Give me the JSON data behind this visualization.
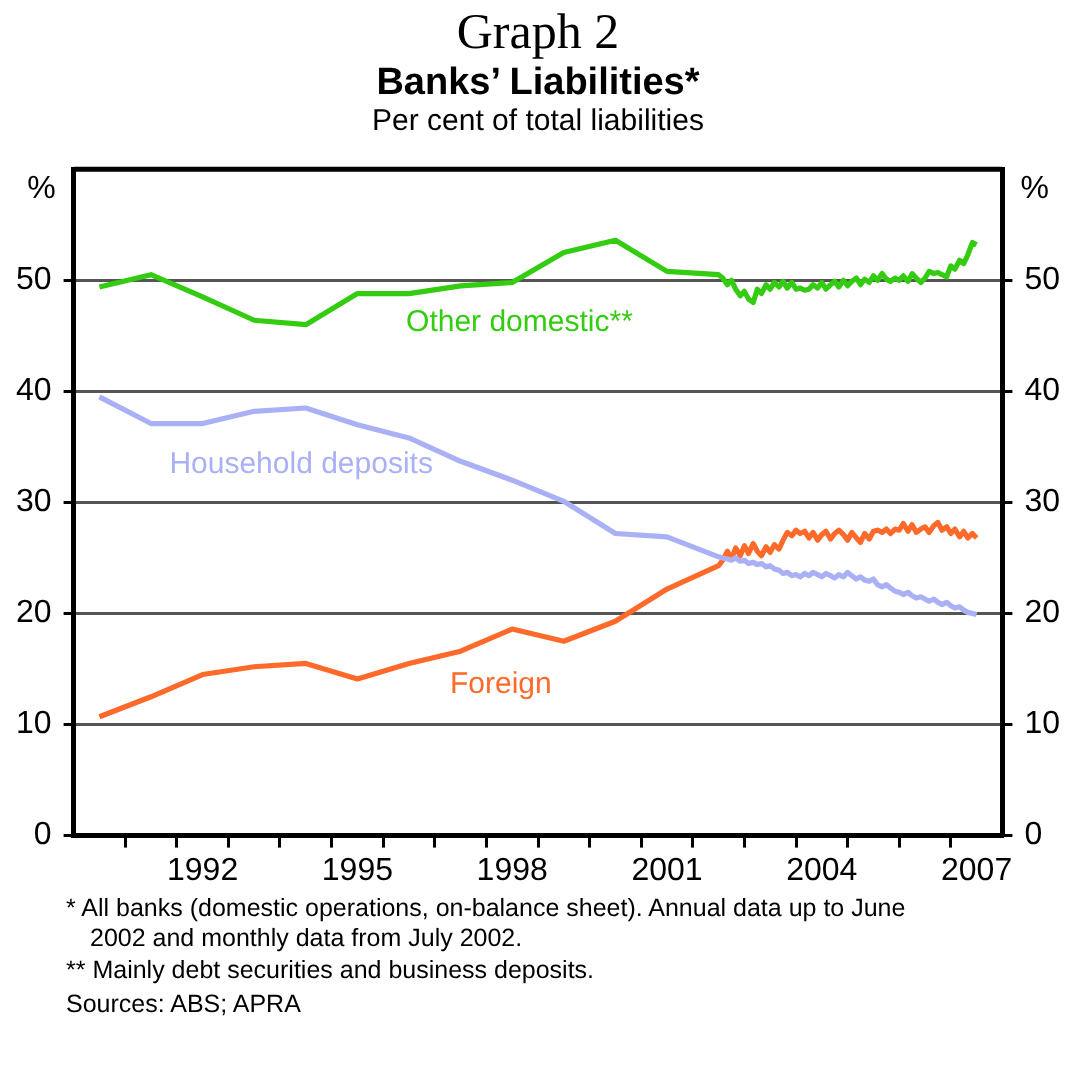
{
  "chart_data": {
    "type": "line",
    "title": "Graph 2",
    "subtitle": "Banks’ Liabilities*",
    "ylabel": "%",
    "y2label": "%",
    "annotations": [
      "Per cent of total liabilities",
      "*  All banks (domestic operations, on-balance sheet). Annual data up to June 2002 and monthly data from July 2002.",
      "** Mainly debt securities and business deposits.",
      "Sources: ABS; APRA"
    ],
    "x": [
      1990.5,
      1991.5,
      1992.5,
      1993.5,
      1994.5,
      1995.5,
      1996.5,
      1997.5,
      1998.5,
      1999.5,
      2000.5,
      2001.5,
      2002.5,
      2002.58,
      2002.67,
      2002.75,
      2002.83,
      2002.92,
      2003,
      2003.08,
      2003.17,
      2003.25,
      2003.33,
      2003.42,
      2003.5,
      2003.58,
      2003.67,
      2003.75,
      2003.83,
      2003.92,
      2004,
      2004.08,
      2004.17,
      2004.25,
      2004.33,
      2004.42,
      2004.5,
      2004.58,
      2004.67,
      2004.75,
      2004.83,
      2004.92,
      2005,
      2005.08,
      2005.17,
      2005.25,
      2005.33,
      2005.42,
      2005.5,
      2005.58,
      2005.67,
      2005.75,
      2005.83,
      2005.92,
      2006,
      2006.08,
      2006.17,
      2006.25,
      2006.33,
      2006.42,
      2006.5,
      2006.58,
      2006.67,
      2006.75,
      2006.83,
      2006.92,
      2007,
      2007.08,
      2007.17,
      2007.25,
      2007.33,
      2007.42,
      2007.5
    ],
    "series": [
      {
        "name": "Other domestic**",
        "color": "#33cc11",
        "values": [
          49.4,
          50.5,
          48.5,
          46.4,
          46.0,
          48.8,
          48.8,
          49.5,
          49.8,
          52.5,
          53.6,
          50.8,
          50.5,
          50.2,
          49.6,
          50.0,
          49.2,
          48.6,
          49.0,
          48.3,
          48.0,
          49.2,
          48.8,
          49.6,
          49.2,
          49.8,
          49.4,
          49.9,
          49.3,
          49.8,
          49.2,
          49.3,
          49.1,
          49.2,
          49.6,
          49.3,
          49.8,
          49.2,
          49.6,
          49.9,
          49.4,
          50.0,
          49.5,
          49.9,
          50.2,
          49.6,
          50.1,
          49.8,
          50.4,
          50.0,
          50.6,
          50.1,
          49.9,
          50.2,
          50.0,
          50.4,
          49.9,
          50.6,
          50.2,
          49.8,
          50.2,
          50.8,
          50.6,
          50.7,
          50.5,
          50.3,
          51.3,
          51.0,
          51.8,
          51.5,
          52.3,
          53.4,
          53.2
        ]
      },
      {
        "name": "Household deposits",
        "color": "#aab0f5",
        "values": [
          39.5,
          37.1,
          37.1,
          38.2,
          38.5,
          37.0,
          35.8,
          33.7,
          32.0,
          30.1,
          27.2,
          26.9,
          25.1,
          25.0,
          24.9,
          24.8,
          25.0,
          24.7,
          24.8,
          24.5,
          24.6,
          24.4,
          24.5,
          24.2,
          24.3,
          24.0,
          23.9,
          23.6,
          23.7,
          23.4,
          23.5,
          23.3,
          23.6,
          23.4,
          23.7,
          23.5,
          23.3,
          23.6,
          23.4,
          23.2,
          23.5,
          23.3,
          23.7,
          23.4,
          23.1,
          23.3,
          23.0,
          22.9,
          23.1,
          22.6,
          22.4,
          22.6,
          22.3,
          22.0,
          21.9,
          21.7,
          21.9,
          21.6,
          21.4,
          21.5,
          21.3,
          21.1,
          21.3,
          21.0,
          20.8,
          21.0,
          20.7,
          20.5,
          20.6,
          20.3,
          20.1,
          20.0,
          19.9
        ]
      },
      {
        "name": "Foreign",
        "color": "#ff6a2b",
        "values": [
          10.7,
          12.5,
          14.5,
          15.2,
          15.5,
          14.1,
          15.5,
          16.6,
          18.6,
          17.5,
          19.3,
          22.2,
          24.3,
          24.8,
          25.6,
          24.9,
          25.9,
          25.2,
          26.1,
          25.4,
          26.3,
          25.6,
          25.2,
          26.0,
          25.5,
          26.2,
          25.8,
          26.6,
          27.3,
          27.0,
          27.5,
          27.2,
          27.4,
          26.8,
          27.3,
          26.6,
          27.1,
          27.4,
          26.7,
          27.2,
          27.5,
          27.1,
          26.6,
          27.3,
          26.8,
          26.4,
          27.2,
          26.7,
          27.4,
          27.5,
          27.3,
          27.6,
          27.2,
          27.6,
          27.5,
          28.1,
          27.4,
          28.0,
          27.3,
          27.6,
          27.8,
          27.3,
          27.9,
          28.2,
          27.5,
          27.8,
          27.2,
          27.6,
          26.9,
          27.4,
          26.8,
          27.2,
          26.8
        ]
      }
    ],
    "xlim": [
      1990,
      2008
    ],
    "xticks": [
      {
        "value": 1991,
        "label": null
      },
      {
        "value": 1992,
        "label": null
      },
      {
        "value": 1992.5,
        "label": "1992"
      },
      {
        "value": 1993,
        "label": null
      },
      {
        "value": 1994,
        "label": null
      },
      {
        "value": 1995,
        "label": null
      },
      {
        "value": 1995.5,
        "label": "1995"
      },
      {
        "value": 1996,
        "label": null
      },
      {
        "value": 1997,
        "label": null
      },
      {
        "value": 1998,
        "label": null
      },
      {
        "value": 1998.5,
        "label": "1998"
      },
      {
        "value": 1999,
        "label": null
      },
      {
        "value": 2000,
        "label": null
      },
      {
        "value": 2001,
        "label": null
      },
      {
        "value": 2001.5,
        "label": "2001"
      },
      {
        "value": 2002,
        "label": null
      },
      {
        "value": 2003,
        "label": null
      },
      {
        "value": 2004,
        "label": null
      },
      {
        "value": 2004.5,
        "label": "2004"
      },
      {
        "value": 2005,
        "label": null
      },
      {
        "value": 2006,
        "label": null
      },
      {
        "value": 2007,
        "label": null
      },
      {
        "value": 2007.5,
        "label": "2007"
      }
    ],
    "ylim": [
      0,
      60
    ],
    "yticks": [
      0,
      10,
      20,
      30,
      40,
      50
    ],
    "y2lim": [
      0,
      60
    ],
    "y2ticks": [
      0,
      10,
      20,
      30,
      40,
      50
    ],
    "grid": "y",
    "legend": false,
    "marker": "none",
    "line_style": "solid"
  }
}
